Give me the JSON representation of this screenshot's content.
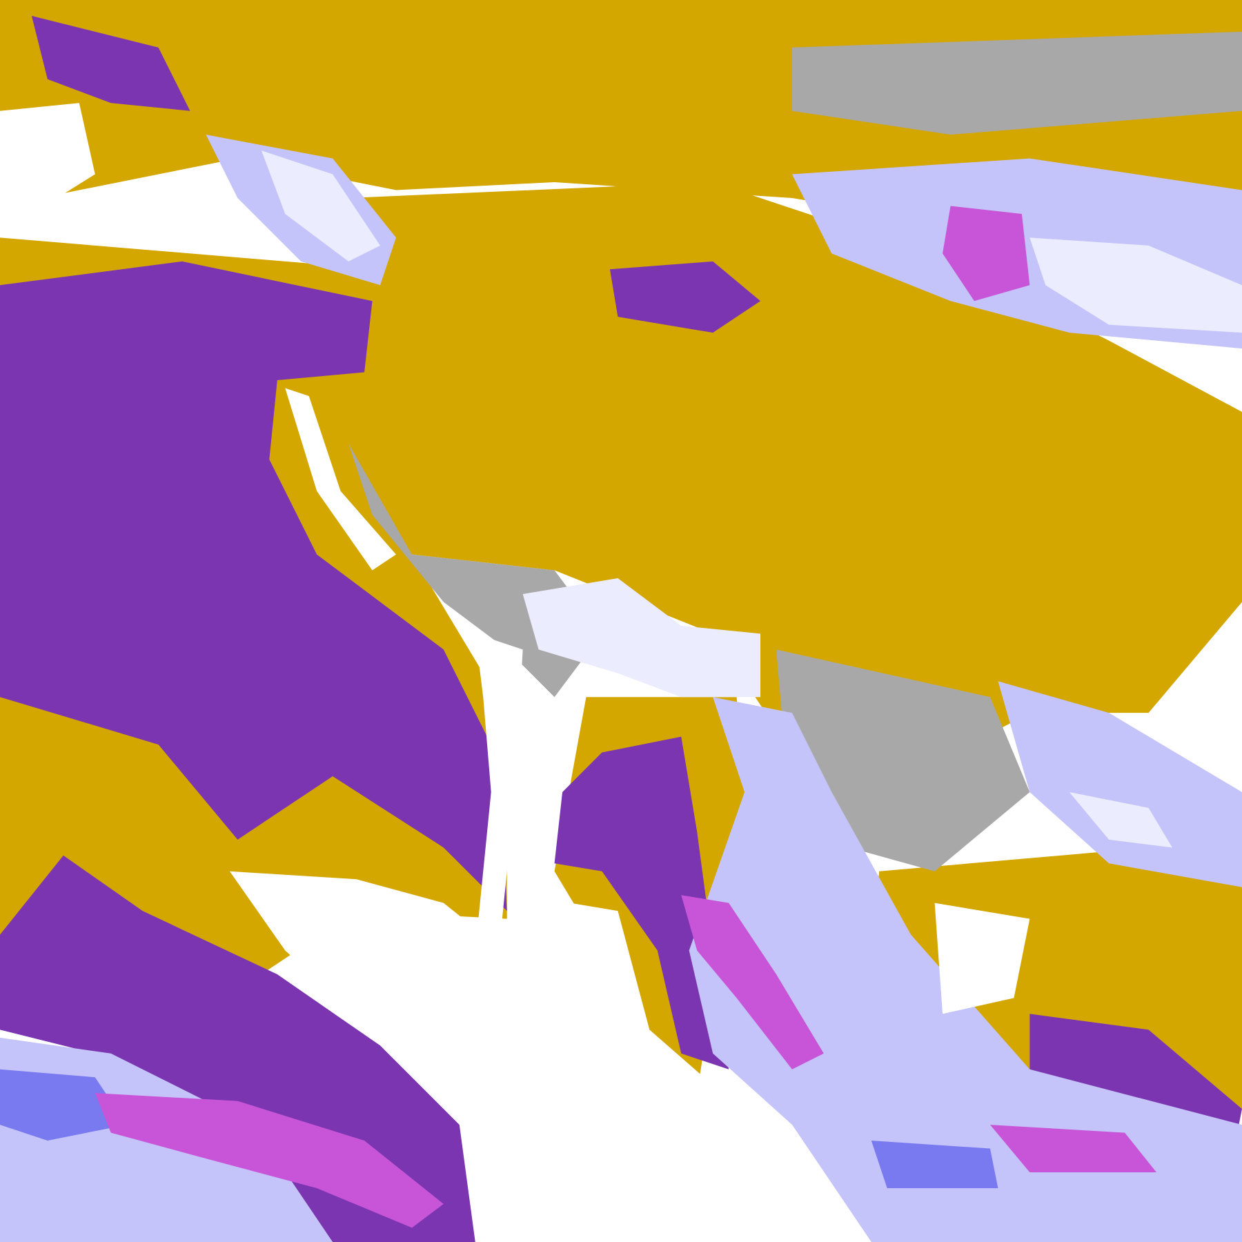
{
  "image": {
    "kind": "false-color satellite cloud classification",
    "palette": {
      "clear": "#ffffff",
      "gold": "#d4a600",
      "purple": "#7b35b0",
      "magenta": "#c855d8",
      "gray": "#a8a8a8",
      "lavender": "#c4c4fa",
      "pale": "#ececff",
      "blue": "#7a7af0"
    }
  }
}
